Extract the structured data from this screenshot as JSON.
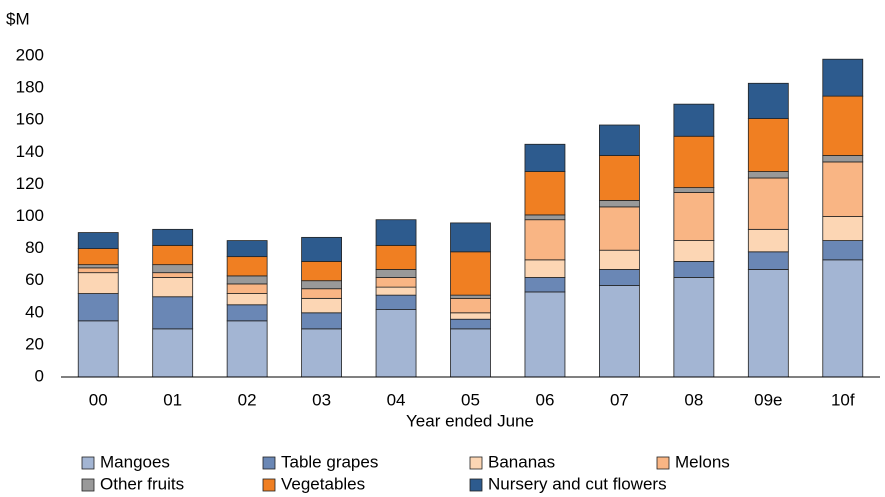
{
  "chart_data": {
    "type": "stacked_bar",
    "y_label": "$M",
    "x_label": "Year ended June",
    "categories": [
      "00",
      "01",
      "02",
      "03",
      "04",
      "05",
      "06",
      "07",
      "08",
      "09e",
      "10f"
    ],
    "series": [
      {
        "name": "Mangoes",
        "color": "#a3b5d3",
        "values": [
          35,
          30,
          35,
          30,
          42,
          30,
          53,
          57,
          62,
          67,
          73
        ]
      },
      {
        "name": "Table grapes",
        "color": "#6a87b5",
        "values": [
          17,
          20,
          10,
          10,
          9,
          6,
          9,
          10,
          10,
          11,
          12
        ]
      },
      {
        "name": "Bananas",
        "color": "#fcd6b4",
        "values": [
          13,
          12,
          7,
          9,
          5,
          4,
          11,
          12,
          13,
          14,
          15
        ]
      },
      {
        "name": "Melons",
        "color": "#f9b584",
        "values": [
          3,
          3,
          6,
          6,
          6,
          9,
          25,
          27,
          30,
          32,
          34
        ]
      },
      {
        "name": "Other fruits",
        "color": "#999999",
        "values": [
          2,
          5,
          5,
          5,
          5,
          2,
          3,
          4,
          3,
          4,
          4
        ]
      },
      {
        "name": "Vegetables",
        "color": "#f07f22",
        "values": [
          10,
          12,
          12,
          12,
          15,
          27,
          27,
          28,
          32,
          33,
          37
        ]
      },
      {
        "name": "Nursery and cut flowers",
        "color": "#2d5b8e",
        "values": [
          10,
          10,
          10,
          15,
          16,
          18,
          17,
          19,
          20,
          22,
          23
        ]
      }
    ],
    "ylim": [
      0,
      200
    ],
    "yticks": [
      0,
      20,
      40,
      60,
      80,
      100,
      120,
      140,
      160,
      180,
      200
    ],
    "grid": false,
    "legend": "bottom"
  }
}
